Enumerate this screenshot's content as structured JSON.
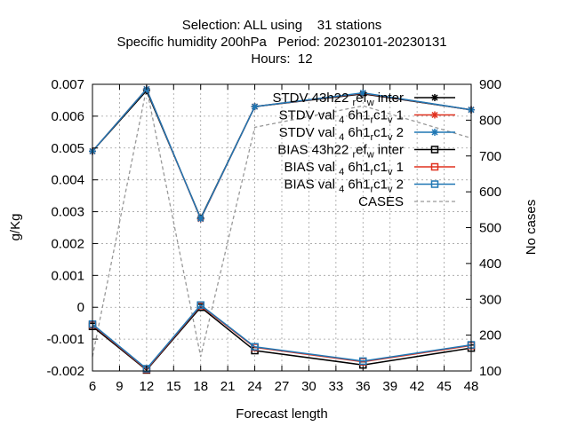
{
  "chart_data": {
    "type": "line",
    "title_lines": [
      "Selection: ALL using    31 stations",
      "Specific humidity 200hPa   Period: 20230101-20230131",
      "Hours:  12"
    ],
    "xlabel": "Forecast length",
    "ylabel": "g/Kg",
    "y2label": "No cases",
    "xlim": [
      6,
      48
    ],
    "ylim": [
      -0.002,
      0.007
    ],
    "y2lim": [
      100,
      900
    ],
    "xticks": [
      "6",
      "9",
      "12",
      "15",
      "18",
      "21",
      "24",
      "27",
      "30",
      "33",
      "36",
      "39",
      "42",
      "45",
      "48"
    ],
    "yticks": [
      "-0.002",
      "-0.001",
      "0",
      "0.001",
      "0.002",
      "0.003",
      "0.004",
      "0.005",
      "0.006",
      "0.007"
    ],
    "y2ticks": [
      "100",
      "200",
      "300",
      "400",
      "500",
      "600",
      "700",
      "800",
      "900"
    ],
    "grid": true,
    "legend_position": "top-right",
    "x": [
      6,
      12,
      18,
      24,
      36,
      48
    ],
    "series": [
      {
        "name": "STDV 43h22_r ef_w inter",
        "name_main": "STDV 43h22",
        "name_sub1": "r",
        "name_mid": "ef",
        "name_sub2": "w",
        "name_end": " inter",
        "axis": "y1",
        "kind": "stdv",
        "color": "#000000",
        "values": [
          0.0049,
          0.0068,
          0.0028,
          0.0063,
          0.0067,
          0.0062
        ]
      },
      {
        "name": "STDV val_4 6h1_r c1_v 1",
        "name_main": "STDV val",
        "name_sub1": "4",
        "name_mid": "6h1",
        "name_sub2": "r",
        "name_mid2": "c1",
        "name_sub3": "v",
        "name_end": " 1",
        "axis": "y1",
        "kind": "stdv",
        "color": "#e0301e",
        "values": [
          0.0049,
          0.00685,
          0.00277,
          0.0063,
          0.00672,
          0.0062
        ]
      },
      {
        "name": "STDV val_4 6h1_r c1_v 2",
        "name_main": "STDV val",
        "name_sub1": "4",
        "name_mid": "6h1",
        "name_sub2": "r",
        "name_mid2": "c1",
        "name_sub3": "v",
        "name_end": " 2",
        "axis": "y1",
        "kind": "stdv",
        "color": "#1f77b4",
        "values": [
          0.0049,
          0.00685,
          0.00278,
          0.0063,
          0.00673,
          0.0062
        ]
      },
      {
        "name": "BIAS 43h22_r ef_w inter",
        "name_main": "BIAS 43h22",
        "name_sub1": "r",
        "name_mid": "ef",
        "name_sub2": "w",
        "name_end": " inter",
        "axis": "y1",
        "kind": "bias",
        "color": "#000000",
        "values": [
          -0.0006,
          -0.00197,
          0.0,
          -0.00136,
          -0.00181,
          -0.00128
        ]
      },
      {
        "name": "BIAS val_4 6h1_r c1_v 1",
        "name_main": "BIAS val",
        "name_sub1": "4",
        "name_mid": "6h1",
        "name_sub2": "r",
        "name_mid2": "c1",
        "name_sub3": "v",
        "name_end": " 1",
        "axis": "y1",
        "kind": "bias",
        "color": "#e0301e",
        "values": [
          -0.00055,
          -0.00195,
          5e-05,
          -0.00126,
          -0.00171,
          -0.0012
        ]
      },
      {
        "name": "BIAS val_4 6h1_r c1_v 2",
        "name_main": "BIAS val",
        "name_sub1": "4",
        "name_mid": "6h1",
        "name_sub2": "r",
        "name_mid2": "c1",
        "name_sub3": "v",
        "name_end": " 2",
        "axis": "y1",
        "kind": "bias",
        "color": "#1f77b4",
        "values": [
          -0.00053,
          -0.00193,
          7e-05,
          -0.00124,
          -0.00169,
          -0.00118
        ]
      },
      {
        "name": "CASES",
        "axis": "y2",
        "kind": "cases",
        "color": "#999999",
        "values": [
          140,
          890,
          140,
          780,
          840,
          750
        ]
      }
    ]
  }
}
